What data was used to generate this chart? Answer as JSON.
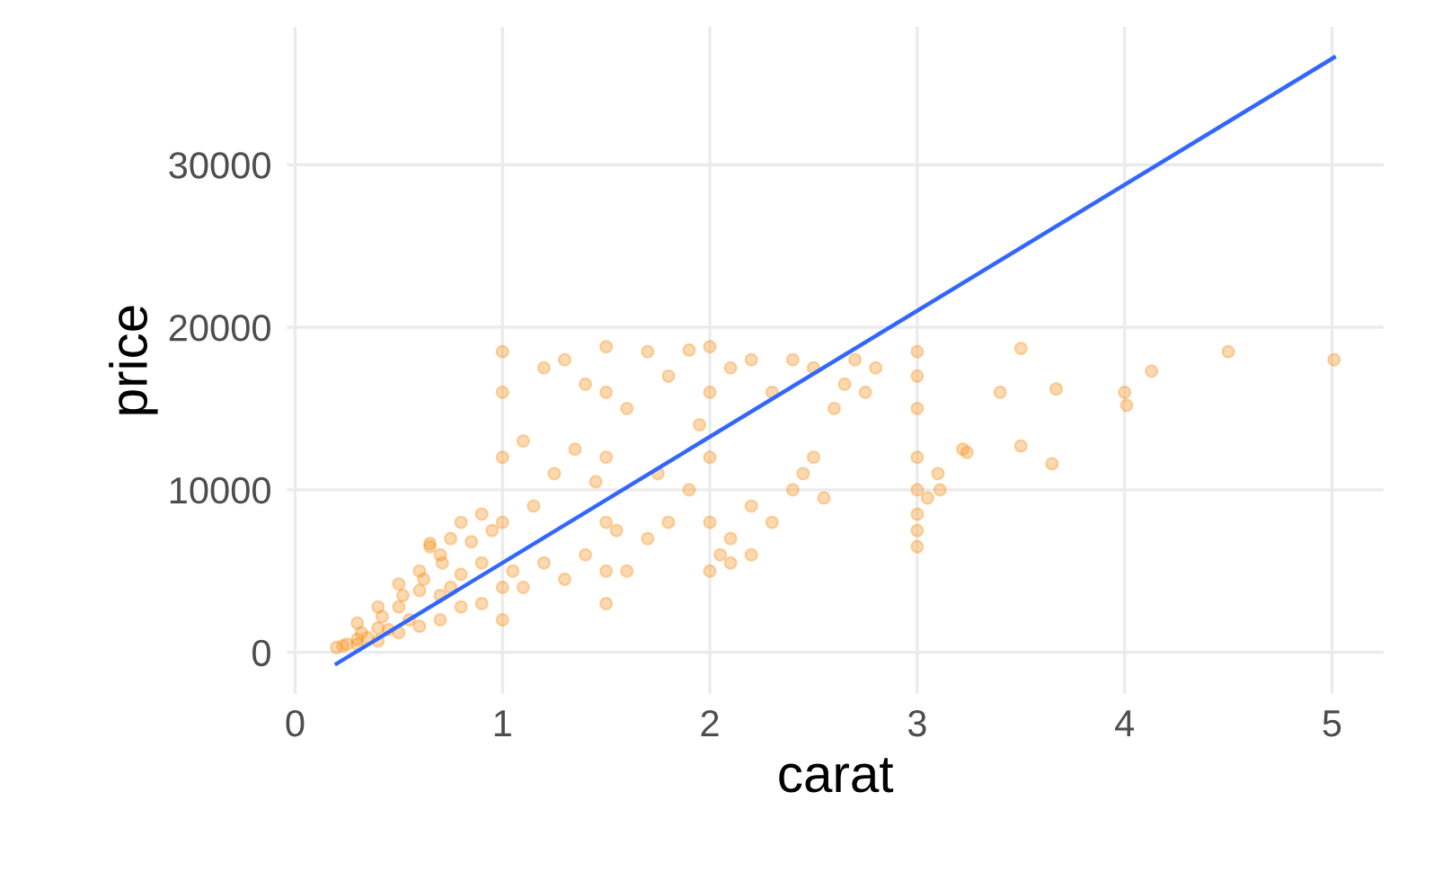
{
  "chart_data": {
    "type": "scatter",
    "xlabel": "carat",
    "ylabel": "price",
    "xlim": [
      -0.04,
      5.25
    ],
    "ylim": [
      -2570,
      38470
    ],
    "xticks": [
      0,
      1,
      2,
      3,
      4,
      5
    ],
    "yticks": [
      0,
      10000,
      20000,
      30000
    ],
    "grid": true,
    "legend": false,
    "series": [
      {
        "color": "#f7931e",
        "marker": "circle",
        "x": [
          0.2,
          0.23,
          0.25,
          0.3,
          0.3,
          0.32,
          0.35,
          0.4,
          0.4,
          0.42,
          0.45,
          0.5,
          0.5,
          0.52,
          0.55,
          0.6,
          0.6,
          0.62,
          0.65,
          0.7,
          0.7,
          0.71,
          0.75,
          0.8,
          0.8,
          0.85,
          0.9,
          0.9,
          0.95,
          0.3,
          0.4,
          0.5,
          0.6,
          0.7,
          0.75,
          0.8,
          0.9,
          0.65,
          1.0,
          1.0,
          1.0,
          1.0,
          1.0,
          1.0,
          1.05,
          1.1,
          1.1,
          1.15,
          1.2,
          1.2,
          1.25,
          1.3,
          1.3,
          1.35,
          1.4,
          1.4,
          1.45,
          1.5,
          1.5,
          1.5,
          1.5,
          1.5,
          1.5,
          1.55,
          1.6,
          1.6,
          1.7,
          1.7,
          1.75,
          1.8,
          1.8,
          1.9,
          1.9,
          1.95,
          2.0,
          2.0,
          2.0,
          2.0,
          2.0,
          2.05,
          2.1,
          2.1,
          2.2,
          2.2,
          2.3,
          2.3,
          2.4,
          2.4,
          2.5,
          2.5,
          2.55,
          2.6,
          2.65,
          2.7,
          2.75,
          2.8,
          2.45,
          2.2,
          2.1,
          3.0,
          3.0,
          3.0,
          3.0,
          3.0,
          3.0,
          3.0,
          3.0,
          3.05,
          3.1,
          3.11,
          3.22,
          3.24,
          3.4,
          3.5,
          3.5,
          3.65,
          3.67,
          4.0,
          4.01,
          4.13,
          4.5,
          5.01
        ],
        "values": [
          300,
          400,
          500,
          500,
          800,
          1200,
          900,
          700,
          1500,
          2200,
          1400,
          1200,
          2800,
          3500,
          2000,
          1600,
          3800,
          4500,
          6500,
          2000,
          3500,
          5500,
          4000,
          2800,
          4800,
          6800,
          3000,
          5500,
          7500,
          1800,
          2800,
          4200,
          5000,
          6000,
          7000,
          8000,
          8500,
          6700,
          2000,
          4000,
          8000,
          12000,
          16000,
          18500,
          5000,
          4000,
          13000,
          9000,
          5500,
          17500,
          11000,
          4500,
          18000,
          12500,
          6000,
          16500,
          10500,
          3000,
          5000,
          8000,
          12000,
          16000,
          18800,
          7500,
          5000,
          15000,
          7000,
          18500,
          11000,
          8000,
          17000,
          10000,
          18600,
          14000,
          5000,
          8000,
          12000,
          16000,
          18800,
          6000,
          7000,
          17500,
          9000,
          18000,
          8000,
          16000,
          10000,
          18000,
          12000,
          17500,
          9500,
          15000,
          16500,
          18000,
          16000,
          17500,
          11000,
          6000,
          5500,
          18500,
          17000,
          15000,
          12000,
          10000,
          8500,
          7500,
          6500,
          9500,
          11000,
          10000,
          12500,
          12300,
          16000,
          18700,
          12700,
          11600,
          16200,
          16000,
          15200,
          17300,
          18500,
          18000
        ]
      },
      {
        "type": "line",
        "color": "#3366ff",
        "x": [
          0.2,
          5.01
        ],
        "values": [
          -700,
          36600
        ]
      }
    ]
  }
}
